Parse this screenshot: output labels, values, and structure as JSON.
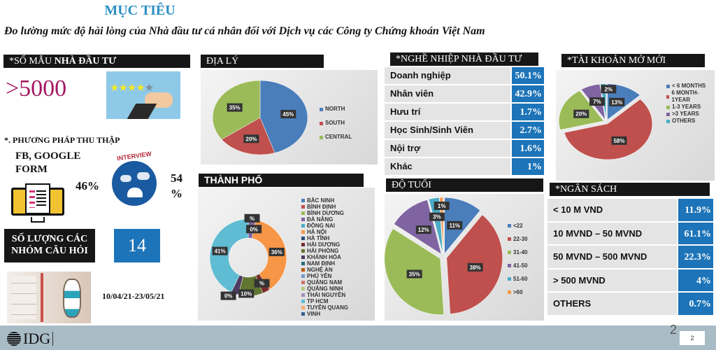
{
  "title": "MỤC TIÊU",
  "subtitle": "Đo lường mức độ hài lòng của Nhà đầu tư cá nhân đối với Dịch vụ các Công ty Chứng khoán Việt Nam",
  "sample": {
    "header_prefix": "*SỐ MẪU ",
    "header_bold": "NHÀ ĐẦU TƯ",
    "value": ">5000",
    "image": "rating-stars-hand-icon"
  },
  "method": {
    "header": "*. PHƯƠNG PHÁP THU THẬP",
    "online_label": "FB, GOOGLE FORM",
    "online_pct": "46%",
    "interview_label": "INTERVIEW",
    "interview_pct": "54 %"
  },
  "questions": {
    "label": "SỐ LƯỢNG CÁC NHÓM CÂU HỎI",
    "value": "14"
  },
  "period": "10/04/21-23/05/21",
  "footer": {
    "logo": "IDG",
    "page": "2",
    "page_small": "2"
  },
  "occupation": {
    "header": "*NGHỀ NHIỆP  NHÀ ĐẦU TƯ",
    "rows": [
      {
        "label": "Doanh nghiệp",
        "value": "50.1%"
      },
      {
        "label": "Nhân viên",
        "value": "42.9%"
      },
      {
        "label": "Hưu trí",
        "value": "1.7%"
      },
      {
        "label": "Học Sinh/Sinh Viên",
        "value": "2.7%"
      },
      {
        "label": "Nội trợ",
        "value": "1.6%"
      },
      {
        "label": "Khác",
        "value": "1%"
      }
    ]
  },
  "budget": {
    "header": "*NGÂN SÁCH",
    "rows": [
      {
        "label": "< 10 M VND",
        "value": "11.9%"
      },
      {
        "label": "10 MVND – 50 MVND",
        "value": "61.1%"
      },
      {
        "label": "50 MVND – 500 MVND",
        "value": "22.3%"
      },
      {
        "label": "> 500 MVND",
        "value": "4%"
      },
      {
        "label": "OTHERS",
        "value": "0.7%"
      }
    ]
  },
  "chart_data": [
    {
      "id": "geo",
      "type": "pie",
      "title": "ĐỊA LÝ",
      "legend": "right",
      "categories": [
        "NORTH",
        "SOUTH",
        "CENTRAL"
      ],
      "values": [
        45,
        20,
        35
      ],
      "labels": [
        "45%",
        "20%",
        "35%"
      ],
      "colors": [
        "#4a7ebb",
        "#c0504d",
        "#9bbb59"
      ]
    },
    {
      "id": "city",
      "type": "pie",
      "donut": true,
      "title": "THÀNH PHỐ",
      "legend": "right",
      "categories": [
        "BẮC NINH",
        "BÌNH ĐỊNH",
        "BÌNH DƯƠNG",
        "ĐÀ NẴNG",
        "ĐỒNG NAI",
        "HÀ NỘI",
        "HÀ TĨNH",
        "HẢI DƯƠNG",
        "HẢI PHÒNG",
        "KHÁNH HÒA",
        "NAM ĐỊNH",
        "NGHỆ AN",
        "PHÚ YÊN",
        "QUẢNG NAM",
        "QUẢNG NINH",
        "THÁI NGUYÊN",
        "TP HCM",
        "TUYÊN QUANG",
        "VINH"
      ],
      "values": [
        0,
        0,
        0,
        3,
        0,
        36,
        0,
        3,
        10,
        3,
        0,
        0,
        0,
        0,
        0,
        0,
        41,
        0,
        0
      ],
      "labels": [
        "0%",
        "%",
        "36%",
        "%",
        "10%",
        "0%",
        "41%"
      ],
      "colors": [
        "#4a7ebb",
        "#c0504d",
        "#9bbb59",
        "#8064a2",
        "#4bacc6",
        "#f79646",
        "#2c4d75",
        "#772c2a",
        "#5f7530",
        "#4d3b62",
        "#276a7c",
        "#b65708",
        "#729aca",
        "#cd7371",
        "#afc97a",
        "#a08fb8",
        "#5fbcd3",
        "#f9ab6b",
        "#3a5f8f"
      ]
    },
    {
      "id": "age",
      "type": "pie",
      "title": "ĐỘ TUỔI",
      "legend": "right",
      "categories": [
        "<22",
        "22-30",
        "31-40",
        "41-50",
        "51-60",
        ">60"
      ],
      "values": [
        11,
        38,
        35,
        12,
        3,
        1
      ],
      "labels": [
        "11%",
        "38%",
        "35%",
        "12%",
        "3%",
        "1%"
      ],
      "colors": [
        "#4a7ebb",
        "#c0504d",
        "#9bbb59",
        "#8064a2",
        "#4bacc6",
        "#f79646"
      ]
    },
    {
      "id": "acct",
      "type": "pie",
      "title": "*TÀI KHOẢN MỞ MỚI",
      "legend": "right",
      "categories": [
        "< 6 MONTHS",
        "6 MONTH-1YEAR",
        "1-3 YEARS",
        ">3 YEARS",
        "OTHERS"
      ],
      "values": [
        13,
        58,
        20,
        7,
        2
      ],
      "labels": [
        "13%",
        "58%",
        "20%",
        "7%",
        "2%"
      ],
      "colors": [
        "#4a7ebb",
        "#c0504d",
        "#9bbb59",
        "#8064a2",
        "#4bacc6"
      ]
    }
  ]
}
